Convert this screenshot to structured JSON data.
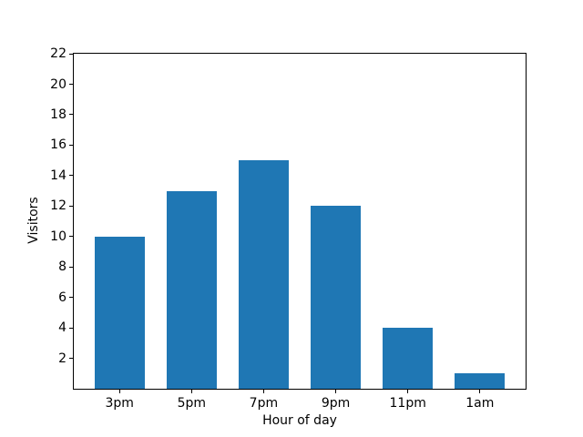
{
  "chart_data": {
    "type": "bar",
    "title": "",
    "categories": [
      "3pm",
      "5pm",
      "7pm",
      "9pm",
      "11pm",
      "1am"
    ],
    "values": [
      10,
      13,
      15,
      12,
      4,
      1
    ],
    "xlabel": "Hour of day",
    "ylabel": "Visitors",
    "ylim": [
      0,
      22
    ],
    "yticks": [
      2,
      4,
      6,
      8,
      10,
      12,
      14,
      16,
      18,
      20,
      22
    ],
    "bar_color": "#1f77b4",
    "bar_width_fraction": 0.7,
    "grid": false,
    "legend": "none",
    "background": "#ffffff",
    "spine_color": "#000000"
  }
}
